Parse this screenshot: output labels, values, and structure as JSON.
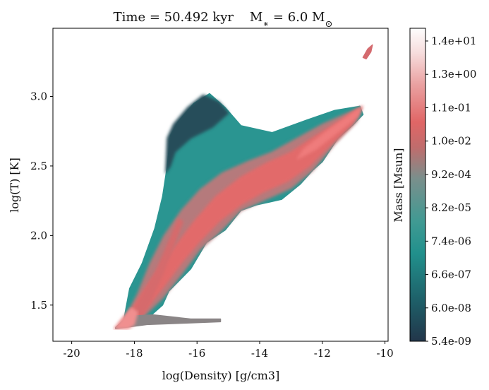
{
  "chart_data": {
    "type": "heatmap",
    "title": "Time = 50.492 kyr    M$_*$ = 6.0 M$_\\odot$",
    "xlabel": "log(Density) [g/cm3]",
    "ylabel": "log(T) [K]",
    "xlim": [
      -20.6,
      -9.9
    ],
    "ylim": [
      1.24,
      3.49
    ],
    "x_ticks": [
      -20,
      -18,
      -16,
      -14,
      -12,
      -10
    ],
    "x_tick_labels": [
      "-20",
      "-18",
      "-16",
      "-14",
      "-12",
      "-10"
    ],
    "y_ticks": [
      1.5,
      2.0,
      2.5,
      3.0
    ],
    "y_tick_labels": [
      "1.5",
      "2.0",
      "2.5",
      "3.0"
    ],
    "grid": false,
    "colorbar": {
      "label": "Mass [Msun]",
      "scale": "log",
      "tick_labels": [
        "5.4e-09",
        "6.0e-08",
        "6.6e-07",
        "7.4e-06",
        "8.2e-05",
        "9.2e-04",
        "1.0e-02",
        "1.1e-01",
        "1.3e+00",
        "1.4e+01"
      ],
      "colors": [
        "#22364a",
        "#1e5c66",
        "#21908c",
        "#3f9a93",
        "#7a8f8c",
        "#c06c6c",
        "#e06666",
        "#eaa1a1",
        "#f6dcdc",
        "#fdfdfd"
      ]
    },
    "regions": [
      {
        "name": "warm-teal-envelope",
        "color": "#2a9591",
        "outline": [
          [
            -18.35,
            1.38
          ],
          [
            -18.15,
            1.62
          ],
          [
            -17.75,
            1.8
          ],
          [
            -17.35,
            2.05
          ],
          [
            -17.1,
            2.28
          ],
          [
            -16.95,
            2.5
          ],
          [
            -16.85,
            2.72
          ],
          [
            -16.6,
            2.82
          ],
          [
            -16.1,
            2.95
          ],
          [
            -15.6,
            3.02
          ],
          [
            -15.1,
            2.92
          ],
          [
            -14.6,
            2.79
          ],
          [
            -13.6,
            2.74
          ],
          [
            -12.5,
            2.83
          ],
          [
            -11.6,
            2.9
          ],
          [
            -10.8,
            2.93
          ],
          [
            -10.7,
            2.87
          ],
          [
            -11.0,
            2.8
          ],
          [
            -11.5,
            2.7
          ],
          [
            -12.0,
            2.53
          ],
          [
            -12.3,
            2.47
          ],
          [
            -12.7,
            2.37
          ],
          [
            -13.3,
            2.26
          ],
          [
            -14.1,
            2.22
          ],
          [
            -14.6,
            2.18
          ],
          [
            -15.1,
            2.04
          ],
          [
            -15.7,
            1.95
          ],
          [
            -16.2,
            1.76
          ],
          [
            -16.9,
            1.6
          ],
          [
            -17.1,
            1.5
          ],
          [
            -17.5,
            1.42
          ],
          [
            -17.8,
            1.38
          ]
        ]
      },
      {
        "name": "cold-dark-rim",
        "color": "#264d5a",
        "outline": [
          [
            -17.0,
            2.45
          ],
          [
            -16.95,
            2.7
          ],
          [
            -16.75,
            2.8
          ],
          [
            -16.3,
            2.92
          ],
          [
            -15.8,
            3.01
          ],
          [
            -15.3,
            2.96
          ],
          [
            -15.0,
            2.88
          ],
          [
            -15.5,
            2.78
          ],
          [
            -16.2,
            2.7
          ],
          [
            -16.7,
            2.6
          ],
          [
            -16.85,
            2.5
          ]
        ]
      },
      {
        "name": "dense-mixed-band",
        "color": "#b57a7b",
        "outline": [
          [
            -18.4,
            1.36
          ],
          [
            -17.9,
            1.58
          ],
          [
            -17.5,
            1.8
          ],
          [
            -17.05,
            2.0
          ],
          [
            -16.5,
            2.18
          ],
          [
            -15.9,
            2.33
          ],
          [
            -15.2,
            2.45
          ],
          [
            -14.4,
            2.53
          ],
          [
            -13.6,
            2.6
          ],
          [
            -12.8,
            2.7
          ],
          [
            -12.0,
            2.8
          ],
          [
            -11.2,
            2.88
          ],
          [
            -10.75,
            2.92
          ],
          [
            -10.9,
            2.82
          ],
          [
            -11.6,
            2.66
          ],
          [
            -12.3,
            2.47
          ],
          [
            -13.0,
            2.34
          ],
          [
            -13.8,
            2.26
          ],
          [
            -14.6,
            2.18
          ],
          [
            -15.3,
            2.02
          ],
          [
            -15.9,
            1.9
          ],
          [
            -16.5,
            1.72
          ],
          [
            -17.1,
            1.55
          ],
          [
            -17.6,
            1.44
          ],
          [
            -18.0,
            1.37
          ]
        ]
      },
      {
        "name": "main-collapse-ridge",
        "color": "#e26a6a",
        "outline": [
          [
            -18.45,
            1.36
          ],
          [
            -18.1,
            1.46
          ],
          [
            -17.7,
            1.6
          ],
          [
            -17.2,
            1.76
          ],
          [
            -16.7,
            1.92
          ],
          [
            -16.1,
            2.1
          ],
          [
            -15.4,
            2.28
          ],
          [
            -14.6,
            2.42
          ],
          [
            -13.8,
            2.52
          ],
          [
            -13.0,
            2.6
          ],
          [
            -12.2,
            2.72
          ],
          [
            -11.4,
            2.83
          ],
          [
            -10.85,
            2.91
          ],
          [
            -11.05,
            2.8
          ],
          [
            -11.7,
            2.66
          ],
          [
            -12.4,
            2.5
          ],
          [
            -13.1,
            2.39
          ],
          [
            -13.9,
            2.31
          ],
          [
            -14.6,
            2.22
          ],
          [
            -15.3,
            2.1
          ],
          [
            -15.9,
            1.96
          ],
          [
            -16.5,
            1.8
          ],
          [
            -17.1,
            1.62
          ],
          [
            -17.6,
            1.48
          ],
          [
            -18.0,
            1.38
          ]
        ]
      },
      {
        "name": "secondary-cold-ridge",
        "color": "#d66a6c",
        "outline": [
          [
            -18.2,
            1.38
          ],
          [
            -17.8,
            1.55
          ],
          [
            -17.3,
            1.75
          ],
          [
            -16.9,
            1.96
          ],
          [
            -16.6,
            2.12
          ],
          [
            -16.45,
            2.1
          ],
          [
            -16.75,
            1.92
          ],
          [
            -17.1,
            1.72
          ],
          [
            -17.5,
            1.52
          ],
          [
            -17.85,
            1.38
          ]
        ]
      },
      {
        "name": "cold-floor-tail",
        "color": "#8a8586",
        "outline": [
          [
            -18.6,
            1.34
          ],
          [
            -18.2,
            1.42
          ],
          [
            -17.4,
            1.43
          ],
          [
            -16.2,
            1.4
          ],
          [
            -15.25,
            1.4
          ],
          [
            -15.25,
            1.38
          ],
          [
            -16.4,
            1.37
          ],
          [
            -17.6,
            1.36
          ],
          [
            -18.6,
            1.33
          ]
        ]
      },
      {
        "name": "highest-mass-core",
        "color": "#f08f8f",
        "outline": [
          [
            -18.65,
            1.33
          ],
          [
            -18.4,
            1.4
          ],
          [
            -18.1,
            1.48
          ],
          [
            -17.9,
            1.45
          ],
          [
            -18.0,
            1.36
          ],
          [
            -18.2,
            1.33
          ]
        ]
      },
      {
        "name": "shock-ridge-outer",
        "color": "#ef7b7b",
        "outline": [
          [
            -12.6,
            2.62
          ],
          [
            -11.8,
            2.76
          ],
          [
            -11.1,
            2.87
          ],
          [
            -10.72,
            2.93
          ],
          [
            -10.85,
            2.86
          ],
          [
            -11.4,
            2.76
          ],
          [
            -12.2,
            2.62
          ],
          [
            -12.8,
            2.55
          ]
        ]
      },
      {
        "name": "hot-knot-tail",
        "color": "#d46a6e",
        "outline": [
          [
            -10.7,
            3.28
          ],
          [
            -10.55,
            3.34
          ],
          [
            -10.4,
            3.37
          ],
          [
            -10.45,
            3.32
          ],
          [
            -10.6,
            3.27
          ]
        ]
      }
    ]
  }
}
